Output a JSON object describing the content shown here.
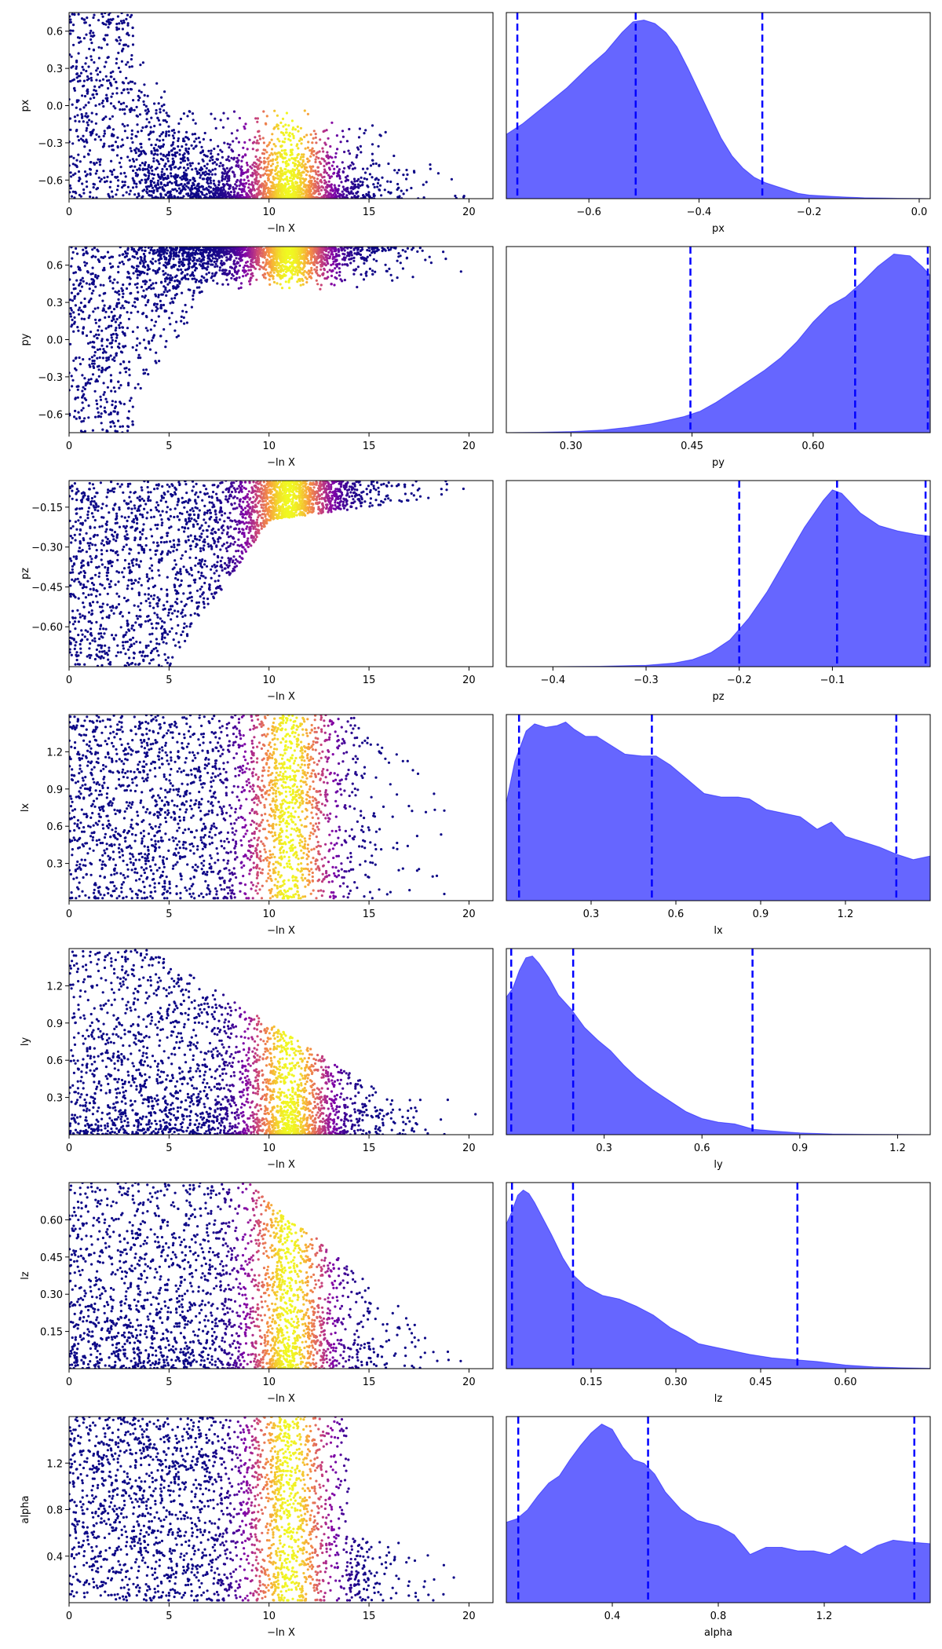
{
  "figure": {
    "scatter_xlabel": "−ln X",
    "scatter_color_scale": [
      "#0d0887",
      "#7e03a8",
      "#cc4778",
      "#f89540",
      "#f0f921"
    ],
    "kde_fill_color": "#0000ff",
    "kde_fill_opacity": 0.6,
    "quantile_line_color": "#0000ff"
  },
  "chart_data": [
    {
      "type": "scatter",
      "row": 0,
      "xlabel": "−ln X",
      "ylabel": "px",
      "xlim": [
        0,
        21.2
      ],
      "ylim": [
        -0.75,
        0.75
      ],
      "xticks": [
        0,
        5,
        10,
        15,
        20
      ],
      "yticks": [
        -0.6,
        -0.3,
        0.0,
        0.3,
        0.6
      ],
      "ytick_labels": [
        "−0.6",
        "−0.3",
        "0.0",
        "0.3",
        "0.6"
      ],
      "profile": "px"
    },
    {
      "type": "area",
      "row": 0,
      "xlabel": "px",
      "xlim": [
        -0.75,
        0.02
      ],
      "xticks": [
        -0.6,
        -0.4,
        -0.2,
        0.0
      ],
      "xtick_labels": [
        "−0.6",
        "−0.4",
        "−0.2",
        "0.0"
      ],
      "quantiles": [
        -0.73,
        -0.515,
        -0.285
      ],
      "x": [
        -0.75,
        -0.72,
        -0.68,
        -0.64,
        -0.6,
        -0.57,
        -0.54,
        -0.52,
        -0.5,
        -0.48,
        -0.46,
        -0.44,
        -0.42,
        -0.4,
        -0.38,
        -0.36,
        -0.34,
        -0.32,
        -0.3,
        -0.28,
        -0.26,
        -0.24,
        -0.22,
        -0.2,
        -0.17,
        -0.14,
        -0.1,
        -0.06,
        0.0,
        0.02
      ],
      "values": [
        0.36,
        0.42,
        0.52,
        0.62,
        0.74,
        0.82,
        0.93,
        0.99,
        1.0,
        0.98,
        0.93,
        0.85,
        0.73,
        0.6,
        0.47,
        0.34,
        0.24,
        0.17,
        0.12,
        0.09,
        0.07,
        0.05,
        0.03,
        0.02,
        0.015,
        0.01,
        0.005,
        0.003,
        0.001,
        0.0
      ]
    },
    {
      "type": "scatter",
      "row": 1,
      "xlabel": "−ln X",
      "ylabel": "py",
      "xlim": [
        0,
        21.2
      ],
      "ylim": [
        -0.75,
        0.75
      ],
      "xticks": [
        0,
        5,
        10,
        15,
        20
      ],
      "yticks": [
        -0.6,
        -0.3,
        0.0,
        0.3,
        0.6
      ],
      "ytick_labels": [
        "−0.6",
        "−0.3",
        "0.0",
        "0.3",
        "0.6"
      ],
      "profile": "py"
    },
    {
      "type": "area",
      "row": 1,
      "xlabel": "py",
      "xlim": [
        0.22,
        0.745
      ],
      "xticks": [
        0.3,
        0.45,
        0.6
      ],
      "xtick_labels": [
        "0.30",
        "0.45",
        "0.60"
      ],
      "quantiles": [
        0.448,
        0.652,
        0.742
      ],
      "x": [
        0.22,
        0.26,
        0.3,
        0.34,
        0.37,
        0.4,
        0.42,
        0.44,
        0.46,
        0.48,
        0.5,
        0.52,
        0.54,
        0.56,
        0.58,
        0.6,
        0.62,
        0.64,
        0.66,
        0.68,
        0.7,
        0.72,
        0.735,
        0.745
      ],
      "values": [
        0.0,
        0.002,
        0.006,
        0.015,
        0.03,
        0.05,
        0.07,
        0.09,
        0.12,
        0.17,
        0.23,
        0.29,
        0.35,
        0.42,
        0.51,
        0.62,
        0.71,
        0.76,
        0.84,
        0.93,
        1.0,
        0.99,
        0.93,
        0.88
      ]
    },
    {
      "type": "scatter",
      "row": 2,
      "xlabel": "−ln X",
      "ylabel": "pz",
      "xlim": [
        0,
        21.2
      ],
      "ylim": [
        -0.75,
        -0.05
      ],
      "xticks": [
        0,
        5,
        10,
        15,
        20
      ],
      "yticks": [
        -0.6,
        -0.45,
        -0.3,
        -0.15
      ],
      "ytick_labels": [
        "−0.60",
        "−0.45",
        "−0.30",
        "−0.15"
      ],
      "profile": "pz"
    },
    {
      "type": "area",
      "row": 2,
      "xlabel": "pz",
      "xlim": [
        -0.45,
        0.005
      ],
      "xticks": [
        -0.4,
        -0.3,
        -0.2,
        -0.1
      ],
      "xtick_labels": [
        "−0.4",
        "−0.3",
        "−0.2",
        "−0.1"
      ],
      "quantiles": [
        -0.2,
        -0.095,
        0.0
      ],
      "x": [
        -0.45,
        -0.4,
        -0.35,
        -0.3,
        -0.27,
        -0.25,
        -0.23,
        -0.21,
        -0.19,
        -0.17,
        -0.15,
        -0.13,
        -0.11,
        -0.1,
        -0.09,
        -0.07,
        -0.05,
        -0.03,
        -0.01,
        0.005
      ],
      "values": [
        0.0,
        0.0,
        0.002,
        0.008,
        0.02,
        0.04,
        0.08,
        0.15,
        0.27,
        0.42,
        0.6,
        0.78,
        0.93,
        0.99,
        0.97,
        0.86,
        0.79,
        0.76,
        0.74,
        0.73
      ]
    },
    {
      "type": "scatter",
      "row": 3,
      "xlabel": "−ln X",
      "ylabel": "lx",
      "xlim": [
        0,
        21.2
      ],
      "ylim": [
        0.0,
        1.5
      ],
      "xticks": [
        0,
        5,
        10,
        15,
        20
      ],
      "yticks": [
        0.3,
        0.6,
        0.9,
        1.2
      ],
      "ytick_labels": [
        "0.3",
        "0.6",
        "0.9",
        "1.2"
      ],
      "profile": "lx"
    },
    {
      "type": "area",
      "row": 3,
      "xlabel": "lx",
      "xlim": [
        0.0,
        1.5
      ],
      "xticks": [
        0.3,
        0.6,
        0.9,
        1.2
      ],
      "xtick_labels": [
        "0.3",
        "0.6",
        "0.9",
        "1.2"
      ],
      "quantiles": [
        0.045,
        0.515,
        1.38
      ],
      "x": [
        0.0,
        0.03,
        0.07,
        0.1,
        0.14,
        0.18,
        0.21,
        0.24,
        0.28,
        0.32,
        0.37,
        0.42,
        0.48,
        0.53,
        0.58,
        0.64,
        0.7,
        0.76,
        0.82,
        0.86,
        0.92,
        0.98,
        1.04,
        1.1,
        1.15,
        1.2,
        1.26,
        1.32,
        1.38,
        1.44,
        1.5
      ],
      "values": [
        0.55,
        0.78,
        0.95,
        0.99,
        0.97,
        0.98,
        1.0,
        0.96,
        0.92,
        0.92,
        0.87,
        0.82,
        0.81,
        0.81,
        0.76,
        0.68,
        0.6,
        0.58,
        0.58,
        0.57,
        0.51,
        0.49,
        0.47,
        0.4,
        0.44,
        0.36,
        0.33,
        0.3,
        0.26,
        0.23,
        0.25
      ]
    },
    {
      "type": "scatter",
      "row": 4,
      "xlabel": "−ln X",
      "ylabel": "ly",
      "xlim": [
        0,
        21.2
      ],
      "ylim": [
        0.0,
        1.5
      ],
      "xticks": [
        0,
        5,
        10,
        15,
        20
      ],
      "yticks": [
        0.3,
        0.6,
        0.9,
        1.2
      ],
      "ytick_labels": [
        "0.3",
        "0.6",
        "0.9",
        "1.2"
      ],
      "profile": "ly"
    },
    {
      "type": "area",
      "row": 4,
      "xlabel": "ly",
      "xlim": [
        0.0,
        1.3
      ],
      "xticks": [
        0.3,
        0.6,
        0.9,
        1.2
      ],
      "xtick_labels": [
        "0.3",
        "0.6",
        "0.9",
        "1.2"
      ],
      "quantiles": [
        0.015,
        0.205,
        0.755
      ],
      "x": [
        0.0,
        0.02,
        0.04,
        0.06,
        0.08,
        0.1,
        0.13,
        0.16,
        0.2,
        0.24,
        0.28,
        0.32,
        0.36,
        0.4,
        0.45,
        0.5,
        0.55,
        0.6,
        0.65,
        0.7,
        0.76,
        0.82,
        0.9,
        1.0,
        1.1,
        1.2,
        1.3
      ],
      "values": [
        0.77,
        0.82,
        0.92,
        0.99,
        1.0,
        0.96,
        0.88,
        0.78,
        0.7,
        0.6,
        0.53,
        0.47,
        0.39,
        0.32,
        0.25,
        0.19,
        0.13,
        0.09,
        0.07,
        0.06,
        0.03,
        0.02,
        0.01,
        0.004,
        0.002,
        0.001,
        0.0
      ]
    },
    {
      "type": "scatter",
      "row": 5,
      "xlabel": "−ln X",
      "ylabel": "lz",
      "xlim": [
        0,
        21.2
      ],
      "ylim": [
        0.0,
        0.75
      ],
      "xticks": [
        0,
        5,
        10,
        15,
        20
      ],
      "yticks": [
        0.15,
        0.3,
        0.45,
        0.6
      ],
      "ytick_labels": [
        "0.15",
        "0.30",
        "0.45",
        "0.60"
      ],
      "profile": "lz"
    },
    {
      "type": "area",
      "row": 5,
      "xlabel": "lz",
      "xlim": [
        0.0,
        0.75
      ],
      "xticks": [
        0.15,
        0.3,
        0.45,
        0.6
      ],
      "xtick_labels": [
        "0.15",
        "0.30",
        "0.45",
        "0.60"
      ],
      "quantiles": [
        0.01,
        0.118,
        0.515
      ],
      "x": [
        0.0,
        0.01,
        0.02,
        0.03,
        0.04,
        0.05,
        0.06,
        0.08,
        0.1,
        0.12,
        0.14,
        0.17,
        0.2,
        0.23,
        0.26,
        0.29,
        0.32,
        0.34,
        0.37,
        0.4,
        0.43,
        0.47,
        0.51,
        0.55,
        0.6,
        0.65,
        0.7,
        0.75
      ],
      "values": [
        0.81,
        0.88,
        0.97,
        1.0,
        0.98,
        0.93,
        0.87,
        0.75,
        0.62,
        0.52,
        0.46,
        0.41,
        0.39,
        0.35,
        0.3,
        0.23,
        0.18,
        0.14,
        0.12,
        0.1,
        0.08,
        0.06,
        0.05,
        0.04,
        0.02,
        0.01,
        0.005,
        0.002
      ]
    },
    {
      "type": "scatter",
      "row": 6,
      "xlabel": "−ln X",
      "ylabel": "alpha",
      "xlim": [
        0,
        21.2
      ],
      "ylim": [
        0.0,
        1.6
      ],
      "xticks": [
        0,
        5,
        10,
        15,
        20
      ],
      "yticks": [
        0.4,
        0.8,
        1.2
      ],
      "ytick_labels": [
        "0.4",
        "0.8",
        "1.2"
      ],
      "profile": "alpha"
    },
    {
      "type": "area",
      "row": 6,
      "xlabel": "alpha",
      "xlim": [
        0.0,
        1.6
      ],
      "xticks": [
        0.4,
        0.8,
        1.2
      ],
      "xtick_labels": [
        "0.4",
        "0.8",
        "1.2"
      ],
      "quantiles": [
        0.045,
        0.535,
        1.54
      ],
      "x": [
        0.0,
        0.04,
        0.08,
        0.12,
        0.16,
        0.2,
        0.24,
        0.28,
        0.32,
        0.36,
        0.4,
        0.44,
        0.48,
        0.52,
        0.56,
        0.6,
        0.66,
        0.72,
        0.8,
        0.86,
        0.92,
        0.98,
        1.04,
        1.1,
        1.16,
        1.22,
        1.28,
        1.34,
        1.4,
        1.46,
        1.52,
        1.6
      ],
      "values": [
        0.45,
        0.47,
        0.52,
        0.6,
        0.67,
        0.71,
        0.8,
        0.88,
        0.95,
        1.0,
        0.97,
        0.87,
        0.8,
        0.78,
        0.72,
        0.62,
        0.52,
        0.46,
        0.43,
        0.38,
        0.27,
        0.31,
        0.31,
        0.29,
        0.29,
        0.27,
        0.32,
        0.27,
        0.32,
        0.35,
        0.34,
        0.33
      ]
    }
  ]
}
